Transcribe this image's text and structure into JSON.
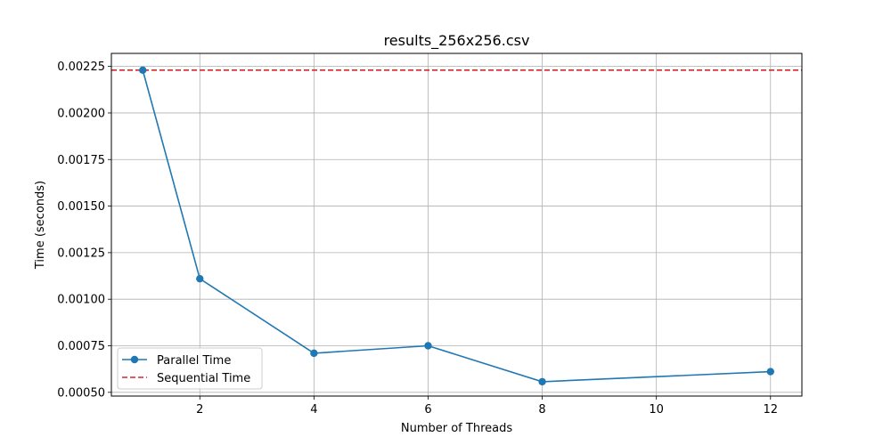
{
  "chart_data": {
    "type": "line",
    "title": "results_256x256.csv",
    "xlabel": "Number of Threads",
    "ylabel": "Time (seconds)",
    "xlim": [
      0.45,
      12.55
    ],
    "ylim": [
      0.00048,
      0.00232
    ],
    "xticks": [
      2,
      4,
      6,
      8,
      10,
      12
    ],
    "yticks": [
      0.0005,
      0.00075,
      0.001,
      0.00125,
      0.0015,
      0.00175,
      0.002,
      0.00225
    ],
    "ytick_labels": [
      "0.00050",
      "0.00075",
      "0.00100",
      "0.00125",
      "0.00150",
      "0.00175",
      "0.00200",
      "0.00225"
    ],
    "grid": true,
    "legend_position": "lower-left",
    "series": [
      {
        "name": "Parallel Time",
        "style": "solid-line-with-markers",
        "color": "#1f77b4",
        "x": [
          1,
          2,
          4,
          6,
          8,
          12
        ],
        "y": [
          0.00223,
          0.00111,
          0.00071,
          0.00075,
          0.000557,
          0.000611
        ]
      },
      {
        "name": "Sequential Time",
        "style": "dashed-horizontal",
        "color": "#d62728",
        "y": 0.00223
      }
    ]
  }
}
